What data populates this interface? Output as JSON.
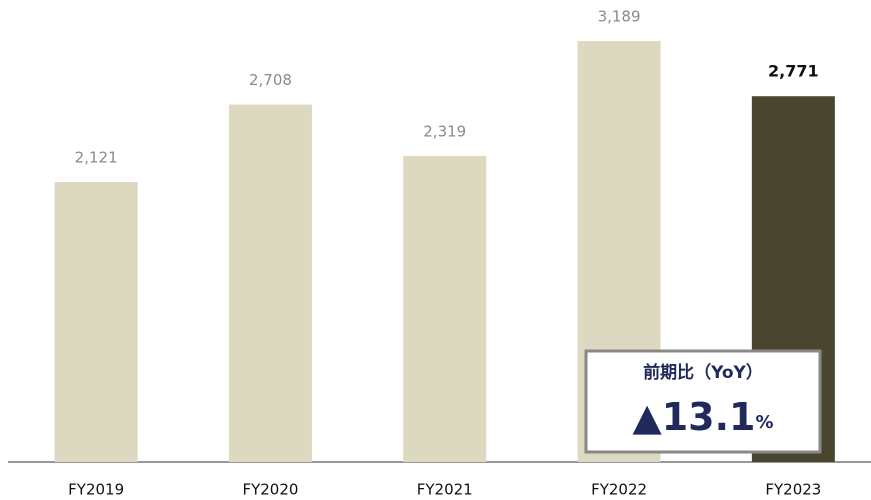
{
  "chart_data": {
    "type": "bar",
    "categories": [
      "FY2019",
      "FY2020",
      "FY2021",
      "FY2022",
      "FY2023"
    ],
    "values": [
      2121,
      2708,
      2319,
      3189,
      2771
    ],
    "value_labels": [
      "2,121",
      "2,708",
      "2,319",
      "3,189",
      "2,771"
    ],
    "colors": [
      "#ddd8c0",
      "#ddd8c0",
      "#ddd8c0",
      "#ddd8c0",
      "#4a452f"
    ],
    "ylim": [
      0,
      3500
    ],
    "annotation": {
      "title": "前期比（YoY）",
      "value": "▲13.1",
      "unit": "%"
    }
  }
}
